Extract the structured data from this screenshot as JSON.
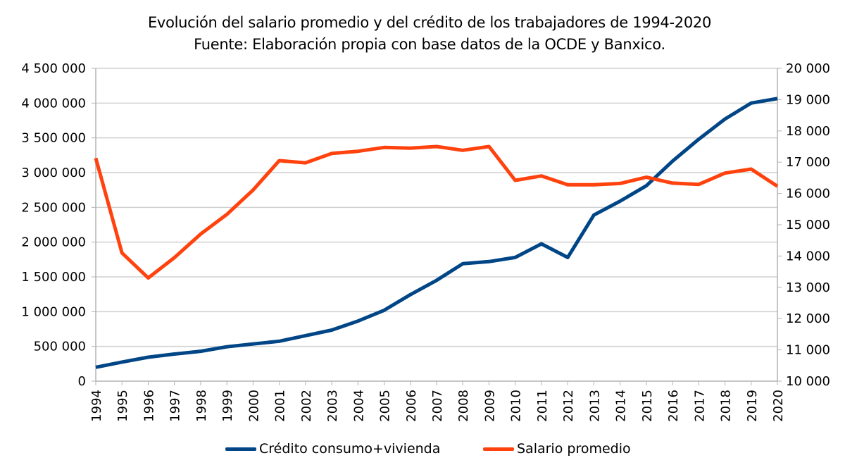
{
  "chart_data": {
    "type": "line",
    "title": "Evolución del salario promedio y del crédito de los trabajadores de 1994-2020",
    "subtitle": "Fuente: Elaboración propia con base datos de la OCDE y Banxico.",
    "xlabel": "",
    "ylabel": "",
    "y2label": "",
    "categories": [
      "1994",
      "1995",
      "1996",
      "1997",
      "1998",
      "1999",
      "2000",
      "2001",
      "2002",
      "2003",
      "2004",
      "2005",
      "2006",
      "2007",
      "2008",
      "2009",
      "2010",
      "2011",
      "2012",
      "2013",
      "2014",
      "2015",
      "2016",
      "2017",
      "2018",
      "2019",
      "2020"
    ],
    "ylim": [
      0,
      4500000
    ],
    "y2lim": [
      10000,
      20000
    ],
    "y_ticks": [
      0,
      500000,
      1000000,
      1500000,
      2000000,
      2500000,
      3000000,
      3500000,
      4000000,
      4500000
    ],
    "y_tick_labels": [
      "0",
      "500 000",
      "1 000 000",
      "1 500 000",
      "2 000 000",
      "2 500 000",
      "3 000 000",
      "3 500 000",
      "4 000 000",
      "4 500 000"
    ],
    "y2_ticks": [
      10000,
      11000,
      12000,
      13000,
      14000,
      15000,
      16000,
      17000,
      18000,
      19000,
      20000
    ],
    "y2_tick_labels": [
      "10 000",
      "11 000",
      "12 000",
      "13 000",
      "14 000",
      "15 000",
      "16 000",
      "17 000",
      "18 000",
      "19 000",
      "20 000"
    ],
    "grid": true,
    "legend_position": "bottom",
    "series": [
      {
        "name": "Crédito consumo+vivienda",
        "axis": "left",
        "color": "#004586",
        "values": [
          200000,
          275000,
          345000,
          390000,
          430000,
          495000,
          535000,
          575000,
          655000,
          735000,
          865000,
          1020000,
          1245000,
          1450000,
          1690000,
          1720000,
          1780000,
          1975000,
          1780000,
          2390000,
          2590000,
          2810000,
          3165000,
          3480000,
          3770000,
          4000000,
          4065000
        ]
      },
      {
        "name": "Salario promedio",
        "axis": "right",
        "color": "#ff420e",
        "values": [
          17130,
          14100,
          13300,
          13950,
          14700,
          15330,
          16110,
          17050,
          16980,
          17280,
          17350,
          17470,
          17450,
          17500,
          17380,
          17500,
          16420,
          16560,
          16280,
          16280,
          16320,
          16520,
          16330,
          16290,
          16650,
          16780,
          16230
        ]
      }
    ]
  }
}
